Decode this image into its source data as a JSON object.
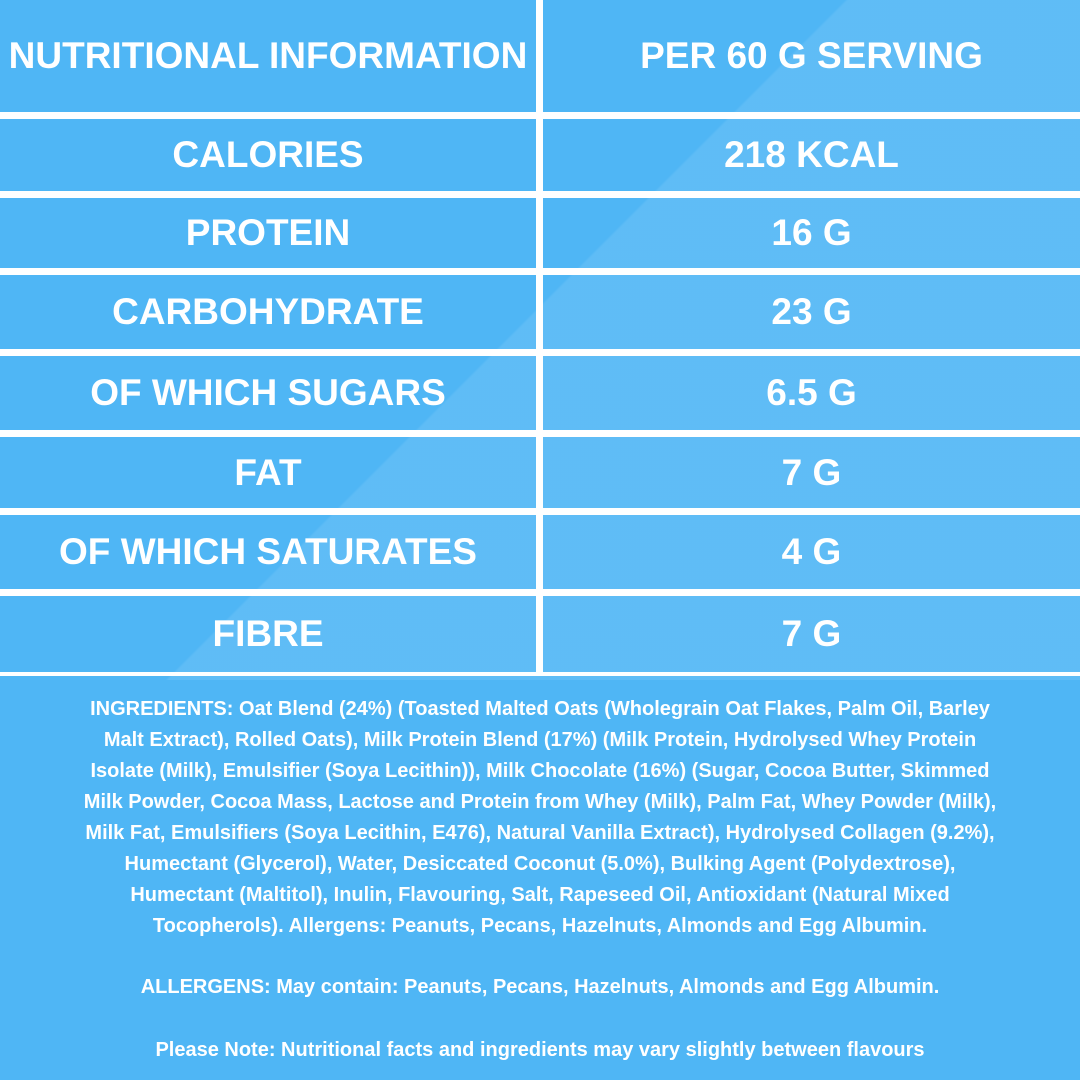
{
  "table": {
    "header": {
      "label": "NUTRITIONAL INFORMATION",
      "value": "PER 60 G SERVING"
    },
    "rows": [
      {
        "label": "CALORIES",
        "value": "218 KCAL"
      },
      {
        "label": "PROTEIN",
        "value": "16 G"
      },
      {
        "label": "CARBOHYDRATE",
        "value": "23 G"
      },
      {
        "label": "OF WHICH SUGARS",
        "value": "6.5 G"
      },
      {
        "label": "FAT",
        "value": "7 G"
      },
      {
        "label": "OF WHICH SATURATES",
        "value": "4 G"
      },
      {
        "label": "FIBRE",
        "value": "7 G"
      }
    ]
  },
  "ingredients_lines": [
    "INGREDIENTS: Oat Blend (24%) (Toasted Malted Oats (Wholegrain Oat Flakes, Palm Oil, Barley",
    "Malt Extract), Rolled Oats), Milk Protein Blend (17%) (Milk Protein, Hydrolysed Whey Protein",
    "Isolate (Milk), Emulsifier (Soya Lecithin)), Milk Chocolate (16%) (Sugar, Cocoa Butter, Skimmed",
    "Milk Powder, Cocoa Mass, Lactose and Protein from Whey (Milk), Palm Fat, Whey Powder (Milk),",
    "Milk Fat, Emulsifiers (Soya Lecithin, E476), Natural Vanilla Extract), Hydrolysed Collagen (9.2%),",
    "Humectant (Glycerol), Water, Desiccated Coconut (5.0%), Bulking Agent (Polydextrose),",
    "Humectant (Maltitol), Inulin, Flavouring, Salt, Rapeseed Oil, Antioxidant (Natural Mixed",
    "Tocopherols). Allergens: Peanuts, Pecans, Hazelnuts, Almonds and Egg Albumin."
  ],
  "allergens": "ALLERGENS: May contain:  Peanuts, Pecans, Hazelnuts, Almonds and Egg Albumin.",
  "note": "Please Note: Nutritional facts and ingredients may vary slightly between flavours",
  "colors": {
    "background": "#4fb6f5",
    "text": "#ffffff"
  }
}
